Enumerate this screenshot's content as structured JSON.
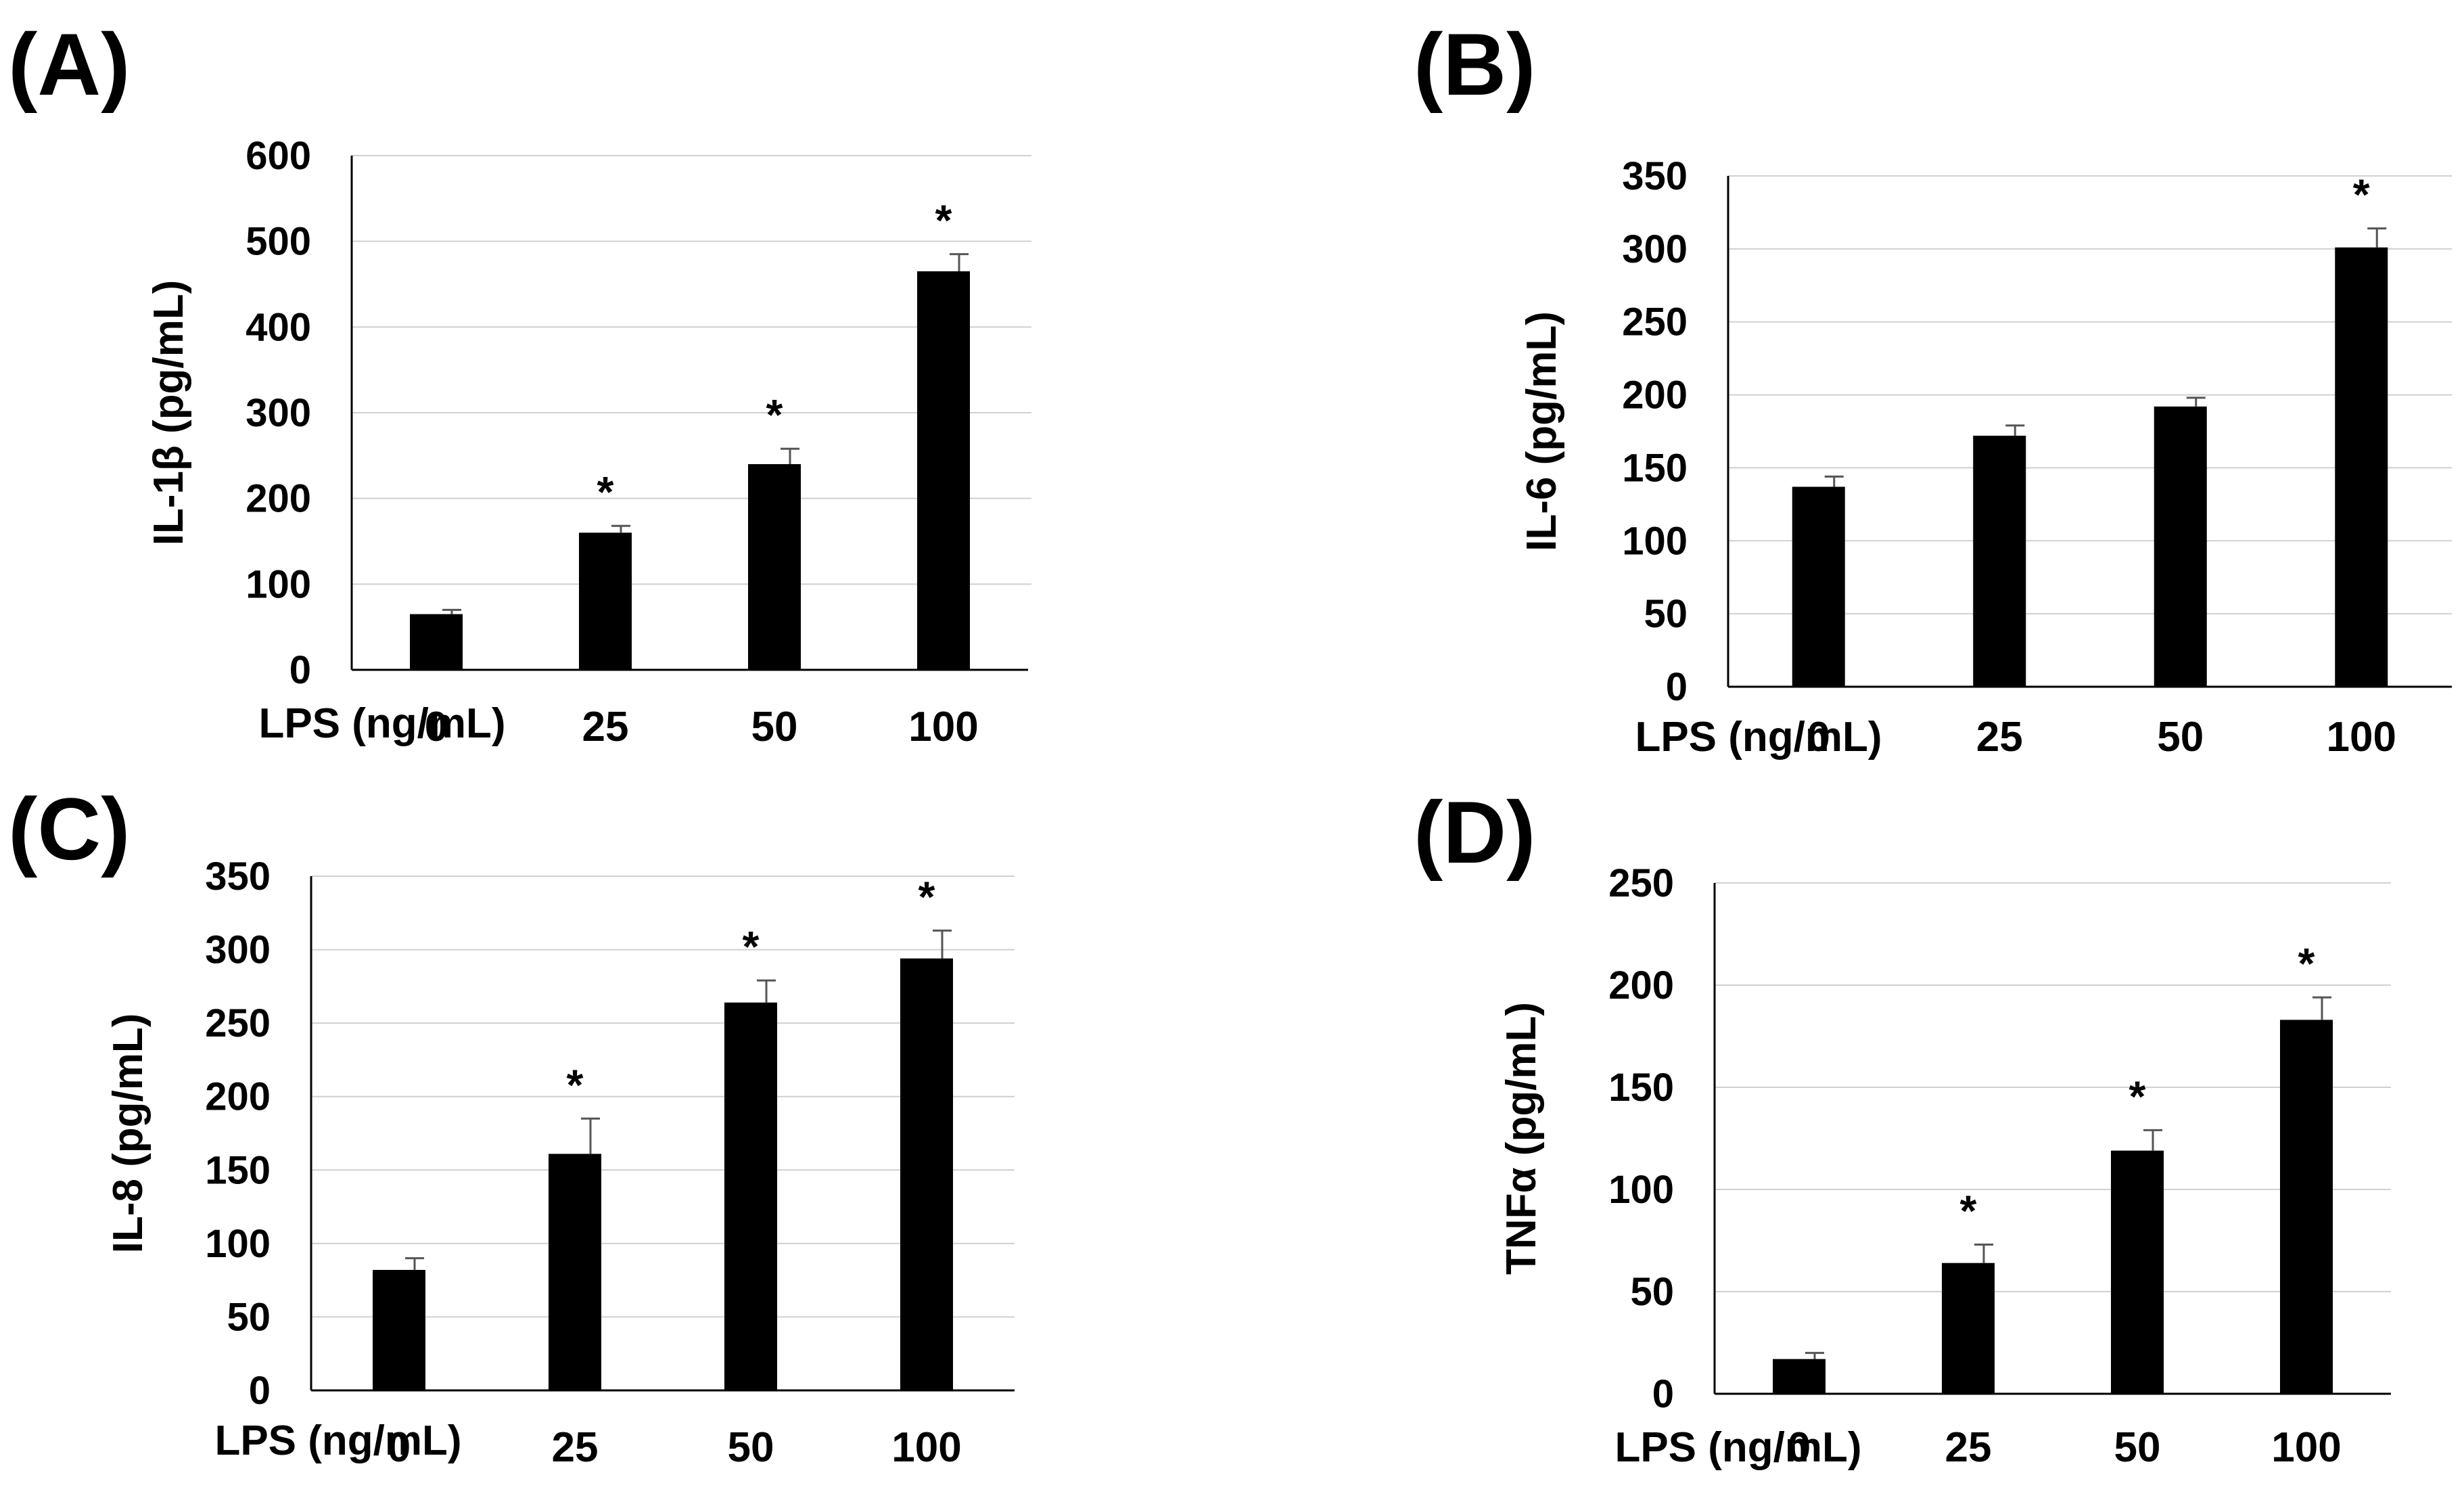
{
  "chart_data": [
    {
      "type": "bar",
      "panel_label": "(A)",
      "ylabel": "IL-1β (pg/mL)",
      "xlabel": "LPS (ng/mL)",
      "categories": [
        "0",
        "25",
        "50",
        "100"
      ],
      "values": [
        65,
        160,
        240,
        465
      ],
      "errors": [
        5,
        8,
        18,
        20
      ],
      "significance": [
        "",
        "*",
        "*",
        "*"
      ],
      "ylim": [
        0,
        600
      ],
      "yticks": [
        0,
        100,
        200,
        300,
        400,
        500,
        600
      ],
      "grid": true
    },
    {
      "type": "bar",
      "panel_label": "(B)",
      "ylabel": "IL-6 (pg/mL)",
      "xlabel": "LPS (ng/mL)",
      "categories": [
        "0",
        "25",
        "50",
        "100"
      ],
      "values": [
        137,
        172,
        192,
        301
      ],
      "errors": [
        7,
        7,
        6,
        13
      ],
      "significance": [
        "",
        "",
        "",
        "*"
      ],
      "ylim": [
        0,
        350
      ],
      "yticks": [
        0,
        50,
        100,
        150,
        200,
        250,
        300,
        350
      ],
      "grid": true
    },
    {
      "type": "bar",
      "panel_label": "(C)",
      "ylabel": "IL-8 (pg/mL)",
      "xlabel": "LPS (ng/mL)",
      "categories": [
        "0",
        "25",
        "50",
        "100"
      ],
      "values": [
        82,
        161,
        264,
        294
      ],
      "errors": [
        8,
        24,
        15,
        19
      ],
      "significance": [
        "",
        "*",
        "*",
        "*"
      ],
      "ylim": [
        0,
        350
      ],
      "yticks": [
        0,
        50,
        100,
        150,
        200,
        250,
        300,
        350
      ],
      "grid": true
    },
    {
      "type": "bar",
      "panel_label": "(D)",
      "ylabel": "TNFα (pg/mL)",
      "xlabel": "LPS (ng/mL)",
      "categories": [
        "0",
        "25",
        "50",
        "100"
      ],
      "values": [
        17,
        64,
        119,
        183
      ],
      "errors": [
        3,
        9,
        10,
        11
      ],
      "significance": [
        "",
        "*",
        "*",
        "*"
      ],
      "ylim": [
        0,
        250
      ],
      "yticks": [
        0,
        50,
        100,
        150,
        200,
        250
      ],
      "grid": true
    }
  ]
}
